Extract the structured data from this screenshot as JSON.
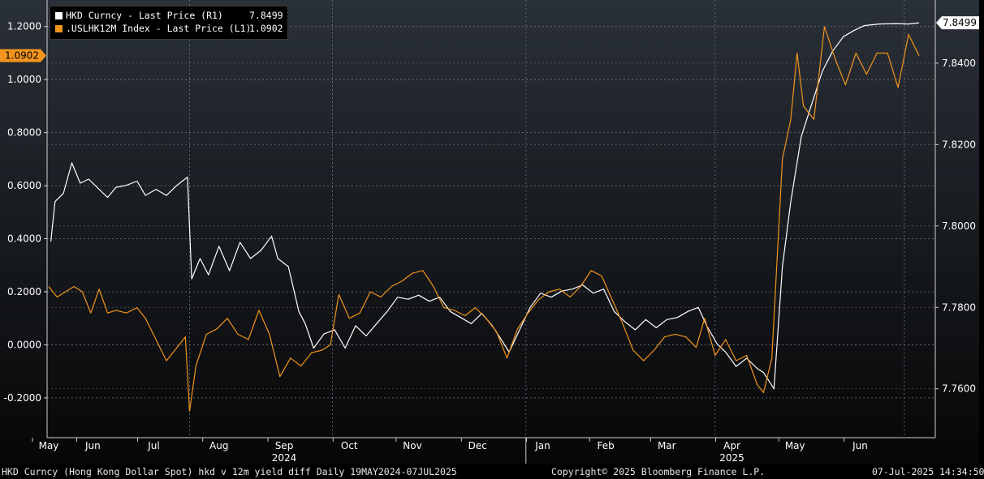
{
  "chart_data": {
    "type": "line",
    "x_range": [
      "2024-05-19",
      "2025-07-07"
    ],
    "series": [
      {
        "name": "HKD Curncy - Last Price (R1)",
        "axis": "right",
        "color": "#ffffff",
        "last_value": "7.8499",
        "points": [
          [
            "2024-05-20",
            7.7962
          ],
          [
            "2024-05-22",
            7.806
          ],
          [
            "2024-05-26",
            7.808
          ],
          [
            "2024-05-30",
            7.8155
          ],
          [
            "2024-06-03",
            7.8105
          ],
          [
            "2024-06-07",
            7.8115
          ],
          [
            "2024-06-12",
            7.809
          ],
          [
            "2024-06-16",
            7.807
          ],
          [
            "2024-06-20",
            7.8095
          ],
          [
            "2024-06-25",
            7.81
          ],
          [
            "2024-06-30",
            7.811
          ],
          [
            "2024-07-04",
            7.8075
          ],
          [
            "2024-07-09",
            7.809
          ],
          [
            "2024-07-14",
            7.8075
          ],
          [
            "2024-07-19",
            7.81
          ],
          [
            "2024-07-24",
            7.812
          ],
          [
            "2024-07-26",
            7.787
          ],
          [
            "2024-07-30",
            7.792
          ],
          [
            "2024-08-03",
            7.788
          ],
          [
            "2024-08-08",
            7.795
          ],
          [
            "2024-08-13",
            7.789
          ],
          [
            "2024-08-18",
            7.796
          ],
          [
            "2024-08-23",
            7.792
          ],
          [
            "2024-08-28",
            7.794
          ],
          [
            "2024-09-02",
            7.7975
          ],
          [
            "2024-09-05",
            7.792
          ],
          [
            "2024-09-10",
            7.79
          ],
          [
            "2024-09-15",
            7.779
          ],
          [
            "2024-09-18",
            7.776
          ],
          [
            "2024-09-22",
            7.77
          ],
          [
            "2024-09-27",
            7.7735
          ],
          [
            "2024-10-02",
            7.7745
          ],
          [
            "2024-10-07",
            7.77
          ],
          [
            "2024-10-12",
            7.7755
          ],
          [
            "2024-10-17",
            7.773
          ],
          [
            "2024-10-22",
            7.776
          ],
          [
            "2024-10-27",
            7.779
          ],
          [
            "2024-11-01",
            7.7825
          ],
          [
            "2024-11-06",
            7.782
          ],
          [
            "2024-11-11",
            7.783
          ],
          [
            "2024-11-16",
            7.7815
          ],
          [
            "2024-11-21",
            7.7825
          ],
          [
            "2024-11-26",
            7.779
          ],
          [
            "2024-12-01",
            7.7775
          ],
          [
            "2024-12-06",
            7.776
          ],
          [
            "2024-12-11",
            7.7785
          ],
          [
            "2024-12-16",
            7.7755
          ],
          [
            "2024-12-21",
            7.7715
          ],
          [
            "2024-12-24",
            7.769
          ],
          [
            "2024-12-29",
            7.7745
          ],
          [
            "2025-01-03",
            7.78
          ],
          [
            "2025-01-08",
            7.7835
          ],
          [
            "2025-01-13",
            7.7825
          ],
          [
            "2025-01-18",
            7.784
          ],
          [
            "2025-01-23",
            7.7845
          ],
          [
            "2025-01-28",
            7.7855
          ],
          [
            "2025-02-02",
            7.7835
          ],
          [
            "2025-02-07",
            7.7845
          ],
          [
            "2025-02-12",
            7.779
          ],
          [
            "2025-02-17",
            7.7765
          ],
          [
            "2025-02-22",
            7.7745
          ],
          [
            "2025-02-27",
            7.777
          ],
          [
            "2025-03-04",
            7.775
          ],
          [
            "2025-03-09",
            7.777
          ],
          [
            "2025-03-14",
            7.7775
          ],
          [
            "2025-03-19",
            7.779
          ],
          [
            "2025-03-24",
            7.78
          ],
          [
            "2025-03-28",
            7.7755
          ],
          [
            "2025-04-02",
            7.771
          ],
          [
            "2025-04-06",
            7.769
          ],
          [
            "2025-04-11",
            7.7655
          ],
          [
            "2025-04-16",
            7.7675
          ],
          [
            "2025-04-21",
            7.765
          ],
          [
            "2025-04-24",
            7.764
          ],
          [
            "2025-04-29",
            7.76
          ],
          [
            "2025-05-03",
            7.79
          ],
          [
            "2025-05-07",
            7.806
          ],
          [
            "2025-05-12",
            7.822
          ],
          [
            "2025-05-17",
            7.83
          ],
          [
            "2025-05-22",
            7.838
          ],
          [
            "2025-05-27",
            7.843
          ],
          [
            "2025-06-01",
            7.8465
          ],
          [
            "2025-06-06",
            7.848
          ],
          [
            "2025-06-11",
            7.8492
          ],
          [
            "2025-06-18",
            7.8496
          ],
          [
            "2025-06-26",
            7.8497
          ],
          [
            "2025-07-02",
            7.8496
          ],
          [
            "2025-07-07",
            7.8499
          ]
        ]
      },
      {
        "name": ".USLHK12M Index - Last Price (L1)",
        "axis": "left",
        "color": "#f2941d",
        "last_value": "1.0902",
        "points": [
          [
            "2024-05-19",
            0.22
          ],
          [
            "2024-05-23",
            0.18
          ],
          [
            "2024-05-27",
            0.2
          ],
          [
            "2024-05-31",
            0.22
          ],
          [
            "2024-06-04",
            0.2
          ],
          [
            "2024-06-08",
            0.12
          ],
          [
            "2024-06-12",
            0.21
          ],
          [
            "2024-06-16",
            0.12
          ],
          [
            "2024-06-20",
            0.13
          ],
          [
            "2024-06-25",
            0.12
          ],
          [
            "2024-06-30",
            0.14
          ],
          [
            "2024-07-04",
            0.1
          ],
          [
            "2024-07-09",
            0.02
          ],
          [
            "2024-07-14",
            -0.06
          ],
          [
            "2024-07-19",
            -0.01
          ],
          [
            "2024-07-23",
            0.03
          ],
          [
            "2024-07-25",
            -0.25
          ],
          [
            "2024-07-28",
            -0.08
          ],
          [
            "2024-08-02",
            0.04
          ],
          [
            "2024-08-07",
            0.06
          ],
          [
            "2024-08-12",
            0.1
          ],
          [
            "2024-08-17",
            0.04
          ],
          [
            "2024-08-22",
            0.02
          ],
          [
            "2024-08-27",
            0.13
          ],
          [
            "2024-09-01",
            0.04
          ],
          [
            "2024-09-06",
            -0.12
          ],
          [
            "2024-09-11",
            -0.05
          ],
          [
            "2024-09-16",
            -0.08
          ],
          [
            "2024-09-21",
            -0.03
          ],
          [
            "2024-09-26",
            -0.02
          ],
          [
            "2024-09-30",
            0.0
          ],
          [
            "2024-10-04",
            0.19
          ],
          [
            "2024-10-09",
            0.1
          ],
          [
            "2024-10-14",
            0.12
          ],
          [
            "2024-10-19",
            0.2
          ],
          [
            "2024-10-24",
            0.18
          ],
          [
            "2024-10-29",
            0.22
          ],
          [
            "2024-11-03",
            0.24
          ],
          [
            "2024-11-08",
            0.27
          ],
          [
            "2024-11-13",
            0.28
          ],
          [
            "2024-11-18",
            0.22
          ],
          [
            "2024-11-23",
            0.14
          ],
          [
            "2024-11-28",
            0.13
          ],
          [
            "2024-12-03",
            0.11
          ],
          [
            "2024-12-08",
            0.14
          ],
          [
            "2024-12-13",
            0.1
          ],
          [
            "2024-12-18",
            0.05
          ],
          [
            "2024-12-23",
            -0.05
          ],
          [
            "2024-12-28",
            0.06
          ],
          [
            "2025-01-02",
            0.12
          ],
          [
            "2025-01-07",
            0.17
          ],
          [
            "2025-01-12",
            0.2
          ],
          [
            "2025-01-17",
            0.21
          ],
          [
            "2025-01-22",
            0.18
          ],
          [
            "2025-01-27",
            0.22
          ],
          [
            "2025-02-01",
            0.28
          ],
          [
            "2025-02-06",
            0.26
          ],
          [
            "2025-02-11",
            0.17
          ],
          [
            "2025-02-16",
            0.08
          ],
          [
            "2025-02-21",
            -0.02
          ],
          [
            "2025-02-26",
            -0.06
          ],
          [
            "2025-03-03",
            -0.02
          ],
          [
            "2025-03-08",
            0.03
          ],
          [
            "2025-03-13",
            0.04
          ],
          [
            "2025-03-18",
            0.03
          ],
          [
            "2025-03-23",
            -0.01
          ],
          [
            "2025-03-27",
            0.1
          ],
          [
            "2025-04-01",
            -0.04
          ],
          [
            "2025-04-06",
            0.02
          ],
          [
            "2025-04-11",
            -0.06
          ],
          [
            "2025-04-16",
            -0.04
          ],
          [
            "2025-04-21",
            -0.15
          ],
          [
            "2025-04-24",
            -0.18
          ],
          [
            "2025-04-28",
            -0.05
          ],
          [
            "2025-05-03",
            0.7
          ],
          [
            "2025-05-07",
            0.85
          ],
          [
            "2025-05-10",
            1.1
          ],
          [
            "2025-05-13",
            0.9
          ],
          [
            "2025-05-18",
            0.85
          ],
          [
            "2025-05-23",
            1.2
          ],
          [
            "2025-05-28",
            1.08
          ],
          [
            "2025-06-02",
            0.98
          ],
          [
            "2025-06-07",
            1.1
          ],
          [
            "2025-06-12",
            1.02
          ],
          [
            "2025-06-17",
            1.1
          ],
          [
            "2025-06-22",
            1.1
          ],
          [
            "2025-06-27",
            0.97
          ],
          [
            "2025-07-02",
            1.17
          ],
          [
            "2025-07-07",
            1.09
          ]
        ]
      }
    ],
    "left_axis": {
      "range": [
        -0.35,
        1.3
      ],
      "ticks": [
        "-0.2000",
        "0.0000",
        "0.2000",
        "0.4000",
        "0.6000",
        "0.8000",
        "1.0000",
        "1.2000"
      ],
      "tick_values": [
        -0.2,
        0,
        0.2,
        0.4,
        0.6,
        0.8,
        1.0,
        1.2
      ]
    },
    "right_axis": {
      "range": [
        7.748,
        7.8555
      ],
      "ticks": [
        "7.7600",
        "7.7800",
        "7.8000",
        "7.8200",
        "7.8400"
      ],
      "tick_values": [
        7.76,
        7.78,
        7.8,
        7.82,
        7.84
      ]
    },
    "month_ticks": [
      {
        "label": "May",
        "date": "2024-05-19"
      },
      {
        "label": "Jun",
        "date": "2024-06-09"
      },
      {
        "label": "Jul",
        "date": "2024-07-08"
      },
      {
        "label": "Aug",
        "date": "2024-08-08"
      },
      {
        "label": "Sep",
        "date": "2024-09-08"
      },
      {
        "label": "Oct",
        "date": "2024-10-09"
      },
      {
        "label": "Nov",
        "date": "2024-11-08"
      },
      {
        "label": "Dec",
        "date": "2024-12-09"
      },
      {
        "label": "Jan",
        "date": "2025-01-09"
      },
      {
        "label": "Feb",
        "date": "2025-02-08"
      },
      {
        "label": "Mar",
        "date": "2025-03-09"
      },
      {
        "label": "Apr",
        "date": "2025-04-09"
      },
      {
        "label": "May",
        "date": "2025-05-09"
      },
      {
        "label": "Jun",
        "date": "2025-06-09"
      }
    ],
    "year_labels": [
      {
        "label": "2024",
        "date": "2024-09-08"
      },
      {
        "label": "2025",
        "date": "2025-04-09"
      }
    ],
    "last_price_left": "1.0902",
    "last_price_right": "7.8499",
    "grid": "horizontal dashed"
  },
  "legend": [
    {
      "swatch_color": "#ffffff",
      "label": "HKD Curncy - Last Price (R1)",
      "value": "7.8499"
    },
    {
      "swatch_color": "#f2941d",
      "label": ".USLHK12M Index - Last Price (L1)",
      "value": "1.0902"
    }
  ],
  "footer": {
    "description": "HKD Curncy (Hong Kong Dollar Spot) hkd v 12m yield diff  Daily 19MAY2024-07JUL2025",
    "copyright": "Copyright© 2025 Bloomberg Finance L.P.",
    "timestamp": "07-Jul-2025 14:34:50"
  }
}
